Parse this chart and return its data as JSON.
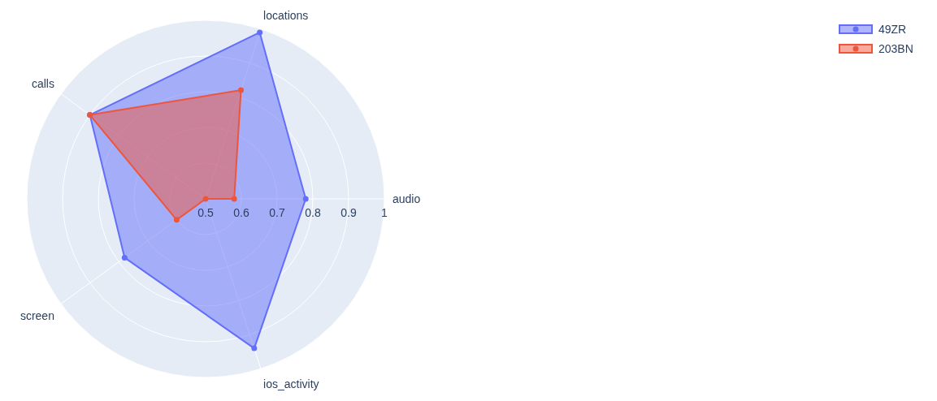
{
  "chart_data": {
    "type": "radar",
    "categories": [
      "locations",
      "audio",
      "ios_activity",
      "screen",
      "calls"
    ],
    "series": [
      {
        "name": "49ZR",
        "color": "#636efa",
        "values": [
          0.99,
          0.78,
          0.94,
          0.78,
          0.9
        ]
      },
      {
        "name": "203BN",
        "color": "#ef553b",
        "values": [
          0.82,
          0.58,
          0.5,
          0.6,
          0.9
        ]
      }
    ],
    "ylim": [
      0.5,
      1
    ],
    "yticks": [
      0.5,
      0.6,
      0.7,
      0.8,
      0.9,
      1
    ],
    "grid": true,
    "legend": "top right",
    "marker": "circle"
  }
}
